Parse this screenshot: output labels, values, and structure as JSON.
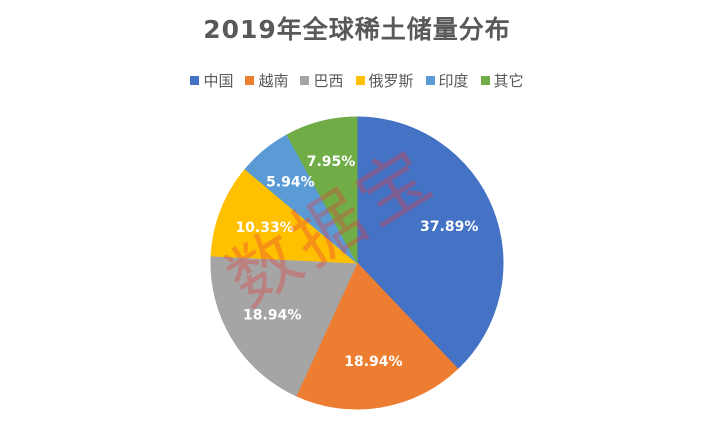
{
  "chart_data": {
    "type": "pie",
    "title": "2019年全球稀土储量分布",
    "categories": [
      "中国",
      "越南",
      "巴西",
      "俄罗斯",
      "印度",
      "其它"
    ],
    "values": [
      37.89,
      18.94,
      18.94,
      10.33,
      5.94,
      7.95
    ],
    "labels": [
      "37.89%",
      "18.94%",
      "18.94%",
      "10.33%",
      "5.94%",
      "7.95%"
    ],
    "colors": [
      "#4472C4",
      "#ED7D31",
      "#A5A5A5",
      "#FFC000",
      "#5B9BD5",
      "#70AD47"
    ],
    "legend_position": "top",
    "start": "12 o'clock, clockwise"
  },
  "watermark": "数据宝"
}
